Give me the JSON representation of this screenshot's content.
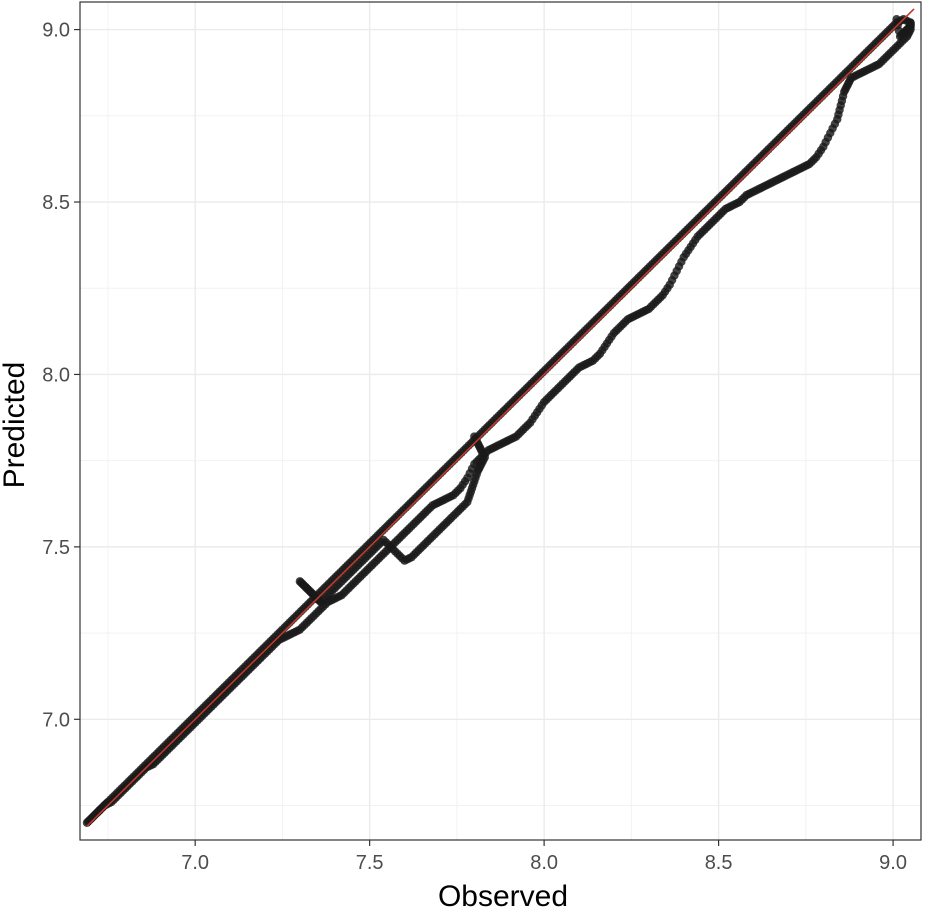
{
  "chart_data": {
    "type": "scatter",
    "title": "",
    "xlabel": "Observed",
    "ylabel": "Predicted",
    "xlim": [
      6.67,
      9.08
    ],
    "ylim": [
      6.65,
      9.08
    ],
    "x_ticks": [
      7.0,
      7.5,
      8.0,
      8.5,
      9.0
    ],
    "y_ticks": [
      7.0,
      7.5,
      8.0,
      8.5,
      9.0
    ],
    "x_tick_labels": [
      "7.0",
      "7.5",
      "8.0",
      "8.5",
      "9.0"
    ],
    "y_tick_labels": [
      "7.0",
      "7.5",
      "8.0",
      "8.5",
      "9.0"
    ],
    "grid": true,
    "legend": "none",
    "point_color": "#1a1a1a",
    "reference_line": {
      "type": "identity",
      "slope": 1,
      "intercept": 0,
      "from": 6.69,
      "to": 9.06,
      "color": "#c0392b"
    },
    "series": [
      {
        "x": [
          6.69,
          6.7,
          6.71,
          6.72,
          6.73,
          6.74,
          6.75,
          6.77,
          6.79,
          6.81,
          6.83,
          6.85,
          6.87,
          6.89,
          6.91,
          6.93,
          6.95,
          6.97,
          6.99,
          7.01,
          7.03,
          7.05,
          7.07,
          7.09,
          7.11,
          7.13,
          7.15,
          7.17,
          7.19,
          7.21,
          7.23,
          7.25,
          7.27,
          7.29,
          7.31,
          7.33,
          7.35,
          7.37,
          7.39,
          7.41,
          7.43,
          7.45,
          7.47,
          7.49,
          7.51,
          7.53,
          7.55,
          7.57,
          7.59,
          7.61,
          7.63,
          7.65,
          7.67,
          7.69,
          7.71,
          7.73,
          7.75,
          7.77,
          7.79,
          7.81,
          7.83,
          7.85,
          7.87,
          7.89,
          7.91,
          7.93,
          7.95,
          7.97,
          7.99,
          8.01,
          8.03,
          8.05,
          8.07,
          8.09,
          8.11,
          8.13,
          8.15,
          8.17,
          8.19,
          8.21,
          8.23,
          8.25,
          8.27,
          8.29,
          8.31,
          8.33,
          8.35,
          8.37,
          8.39,
          8.41,
          8.43,
          8.45,
          8.47,
          8.49,
          8.51,
          8.53,
          8.55,
          8.57,
          8.59,
          8.61,
          8.63,
          8.65,
          8.67,
          8.69,
          8.71,
          8.73,
          8.75,
          8.77,
          8.79,
          8.81,
          8.83,
          8.85,
          8.87,
          8.89,
          8.91,
          8.93,
          8.95,
          8.97,
          8.99,
          9.01,
          9.03,
          9.05,
          9.05,
          9.04,
          9.03,
          9.02,
          9.01
        ],
        "y": [
          6.7,
          6.71,
          6.72,
          6.73,
          6.74,
          6.75,
          6.76,
          6.78,
          6.8,
          6.82,
          6.84,
          6.86,
          6.88,
          6.9,
          6.92,
          6.94,
          6.96,
          6.98,
          7.0,
          7.02,
          7.04,
          7.06,
          7.08,
          7.1,
          7.12,
          7.14,
          7.16,
          7.18,
          7.2,
          7.22,
          7.24,
          7.26,
          7.28,
          7.3,
          7.32,
          7.34,
          7.36,
          7.38,
          7.4,
          7.42,
          7.44,
          7.46,
          7.48,
          7.5,
          7.52,
          7.54,
          7.56,
          7.58,
          7.6,
          7.62,
          7.64,
          7.66,
          7.68,
          7.7,
          7.72,
          7.74,
          7.76,
          7.78,
          7.8,
          7.82,
          7.84,
          7.86,
          7.88,
          7.9,
          7.92,
          7.94,
          7.96,
          7.98,
          8.0,
          8.02,
          8.04,
          8.06,
          8.08,
          8.1,
          8.12,
          8.14,
          8.16,
          8.18,
          8.2,
          8.22,
          8.24,
          8.26,
          8.28,
          8.3,
          8.32,
          8.34,
          8.36,
          8.38,
          8.4,
          8.42,
          8.44,
          8.46,
          8.48,
          8.5,
          8.52,
          8.54,
          8.56,
          8.58,
          8.6,
          8.62,
          8.64,
          8.66,
          8.68,
          8.7,
          8.72,
          8.74,
          8.76,
          8.78,
          8.8,
          8.82,
          8.84,
          8.86,
          8.88,
          8.9,
          8.92,
          8.94,
          8.96,
          8.98,
          9.0,
          9.02,
          9.03,
          9.02,
          9.01,
          9.0,
          8.99,
          8.98,
          9.03
        ]
      },
      {
        "x": [
          6.72,
          6.74,
          6.76,
          6.78,
          6.8,
          6.82,
          6.84,
          6.86,
          6.88,
          6.9,
          6.92,
          6.94,
          6.96,
          6.98,
          7.0,
          7.02,
          7.04,
          7.06,
          7.08,
          7.1,
          7.12,
          7.14,
          7.16,
          7.18,
          7.2,
          7.22,
          7.24,
          7.26,
          7.28,
          7.3,
          7.32,
          7.34,
          7.36,
          7.38,
          7.4,
          7.42,
          7.44,
          7.46,
          7.48,
          7.5,
          7.52,
          7.54,
          7.56,
          7.58,
          7.6,
          7.62,
          7.64,
          7.66,
          7.68,
          7.7,
          7.72,
          7.74,
          7.76,
          7.78,
          7.8,
          7.82,
          7.84,
          7.86,
          7.88,
          7.9,
          7.92,
          7.94,
          7.96,
          7.98,
          8.0,
          8.02,
          8.04,
          8.06,
          8.08,
          8.1,
          8.12,
          8.14,
          8.16,
          8.18,
          8.2,
          8.22,
          8.24,
          8.26,
          8.28,
          8.3,
          8.32,
          8.34,
          8.36,
          8.38,
          8.4,
          8.42,
          8.44,
          8.46,
          8.48,
          8.5,
          8.52,
          8.54,
          8.56,
          8.58,
          8.6,
          8.62,
          8.64,
          8.66,
          8.68,
          8.7,
          8.72,
          8.74,
          8.76,
          8.78,
          8.8,
          8.82,
          8.84,
          8.85,
          8.86,
          8.87,
          8.88,
          8.9,
          8.92,
          8.94,
          8.96,
          8.98,
          9.0,
          9.02,
          9.04,
          9.05,
          9.05
        ],
        "y": [
          6.73,
          6.75,
          6.76,
          6.78,
          6.8,
          6.82,
          6.84,
          6.86,
          6.87,
          6.89,
          6.91,
          6.93,
          6.95,
          6.97,
          6.99,
          7.01,
          7.03,
          7.05,
          7.07,
          7.09,
          7.11,
          7.13,
          7.15,
          7.17,
          7.19,
          7.21,
          7.23,
          7.24,
          7.25,
          7.26,
          7.28,
          7.3,
          7.32,
          7.34,
          7.35,
          7.36,
          7.38,
          7.4,
          7.42,
          7.44,
          7.46,
          7.48,
          7.5,
          7.52,
          7.54,
          7.56,
          7.58,
          7.6,
          7.62,
          7.63,
          7.64,
          7.65,
          7.67,
          7.7,
          7.74,
          7.76,
          7.78,
          7.79,
          7.8,
          7.81,
          7.82,
          7.84,
          7.86,
          7.89,
          7.92,
          7.94,
          7.96,
          7.98,
          8.0,
          8.02,
          8.03,
          8.04,
          8.06,
          8.09,
          8.12,
          8.14,
          8.16,
          8.17,
          8.18,
          8.19,
          8.21,
          8.23,
          8.26,
          8.3,
          8.34,
          8.37,
          8.4,
          8.42,
          8.44,
          8.46,
          8.48,
          8.49,
          8.5,
          8.52,
          8.53,
          8.54,
          8.55,
          8.56,
          8.57,
          8.58,
          8.59,
          8.6,
          8.61,
          8.63,
          8.66,
          8.7,
          8.74,
          8.78,
          8.82,
          8.84,
          8.86,
          8.87,
          8.88,
          8.89,
          8.9,
          8.92,
          8.94,
          8.96,
          8.98,
          9.0,
          9.02
        ]
      },
      {
        "x": [
          7.3,
          7.31,
          7.32,
          7.33,
          7.34,
          7.35,
          7.36,
          7.38,
          7.4,
          7.42,
          7.44,
          7.46,
          7.48,
          7.5,
          7.52,
          7.54,
          7.56,
          7.58,
          7.6,
          7.62,
          7.64,
          7.66,
          7.68,
          7.7,
          7.72,
          7.74,
          7.76,
          7.78,
          7.79,
          7.8,
          7.81,
          7.82,
          7.83,
          7.82,
          7.81,
          7.8
        ],
        "y": [
          7.4,
          7.39,
          7.38,
          7.37,
          7.36,
          7.35,
          7.34,
          7.36,
          7.38,
          7.4,
          7.42,
          7.44,
          7.46,
          7.48,
          7.5,
          7.52,
          7.5,
          7.48,
          7.46,
          7.47,
          7.49,
          7.51,
          7.53,
          7.55,
          7.57,
          7.59,
          7.61,
          7.63,
          7.66,
          7.69,
          7.72,
          7.74,
          7.76,
          7.78,
          7.8,
          7.82
        ]
      }
    ]
  }
}
